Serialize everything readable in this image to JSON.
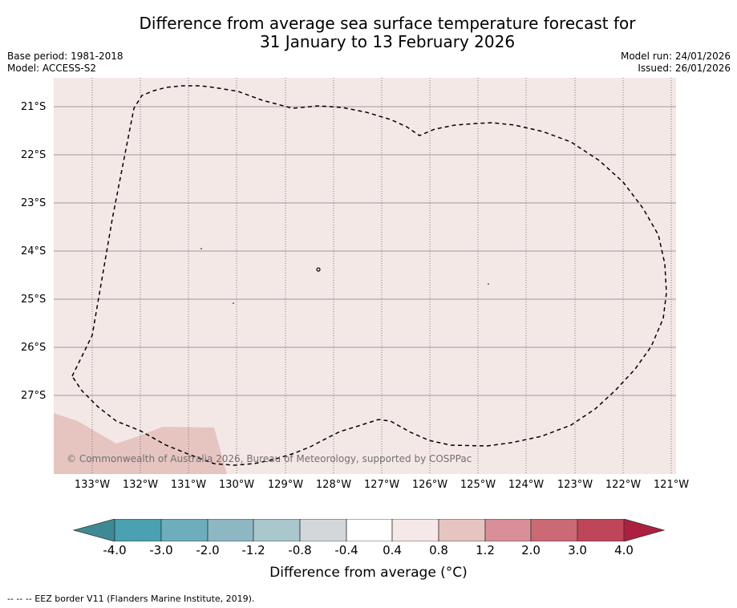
{
  "title_line1": "Difference from average sea surface temperature forecast for",
  "title_line2": "31 January to 13 February 2026",
  "meta_left": {
    "base_period": "Base period: 1981-2018",
    "model": "Model: ACCESS-S2"
  },
  "meta_right": {
    "model_run": "Model run: 24/01/2026",
    "issued": "Issued: 26/01/2026"
  },
  "map": {
    "lat_labels": [
      "21°S",
      "22°S",
      "23°S",
      "24°S",
      "25°S",
      "26°S",
      "27°S"
    ],
    "lon_labels": [
      "133°W",
      "132°W",
      "131°W",
      "130°W",
      "129°W",
      "128°W",
      "127°W",
      "126°W",
      "125°W",
      "124°W",
      "123°W",
      "122°W",
      "121°W"
    ],
    "ocean_color": "#f4e8e7",
    "warm_patch_color": "#e6c5c1",
    "copyright": "© Commonwealth of Australia 2026, Bureau of Meteorology, supported by COSPPac"
  },
  "colorbar": {
    "ticks": [
      "-4.0",
      "-3.0",
      "-2.0",
      "-1.2",
      "-0.8",
      "-0.4",
      "0.4",
      "0.8",
      "1.2",
      "2.0",
      "3.0",
      "4.0"
    ],
    "colors": [
      "#4aa1b1",
      "#6eadbb",
      "#8db8c3",
      "#a9c7cc",
      "#d3d7da",
      "#ffffff",
      "#f6e8e7",
      "#e6c5c1",
      "#d98f97",
      "#cb6a74",
      "#bf4558"
    ],
    "under_color": "#3e8a94",
    "over_color": "#ad1f3e",
    "label": "Difference from average (°C)"
  },
  "footnote": "--  --  -- EEZ border V11 (Flanders Marine Institute, 2019)."
}
